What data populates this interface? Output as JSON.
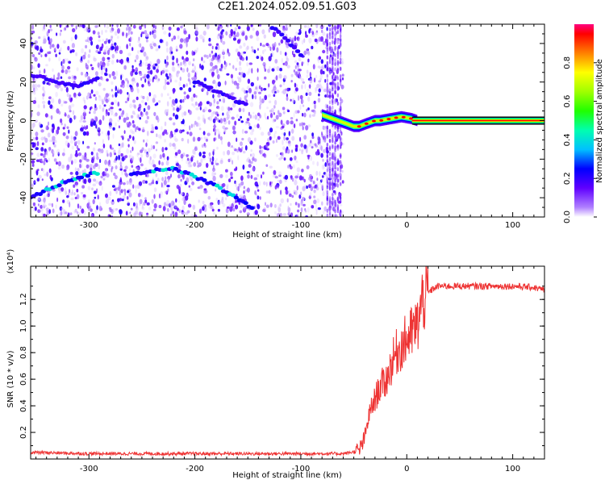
{
  "title": "C2E1.2024.052.09.51.G03",
  "colors": {
    "snr_line": "#ee3333",
    "background": "#ffffff",
    "axes": "#000000"
  },
  "chart_data": [
    {
      "type": "heatmap",
      "title": "C2E1.2024.052.09.51.G03",
      "xlabel": "Height of straight line (km)",
      "ylabel": "Frequency (Hz)",
      "xlim": [
        -355,
        130
      ],
      "ylim": [
        -50,
        50
      ],
      "x_ticks": [
        -300,
        -200,
        -100,
        0,
        100
      ],
      "y_ticks": [
        -40,
        -20,
        0,
        20,
        40
      ],
      "grid": false,
      "colormap": "rainbow",
      "colorbar": {
        "label": "Normalized spectral amplitude",
        "range": [
          0,
          1
        ],
        "ticks": [
          0.0,
          0.2,
          0.4,
          0.6,
          0.8
        ]
      },
      "noise_region_x": [
        -355,
        -60
      ],
      "main_tone": {
        "x": [
          -80,
          -75,
          -70,
          -65,
          -60,
          -55,
          -50,
          -45,
          -40,
          -35,
          -30,
          -25,
          -20,
          -15,
          -10,
          -5,
          0,
          5,
          10,
          130
        ],
        "y": [
          3,
          2,
          1,
          0,
          -1,
          -2,
          -3,
          -3,
          -2,
          -1,
          0,
          0,
          0.5,
          1,
          1.5,
          2,
          1.5,
          1,
          0,
          0
        ]
      },
      "alias_tracks": [
        {
          "x": [
            -355,
            -340,
            -320,
            -300,
            -290
          ],
          "y": [
            -40,
            -36,
            -31,
            -28,
            -27
          ]
        },
        {
          "x": [
            -355,
            -330,
            -310,
            -300,
            -290
          ],
          "y": [
            24,
            20,
            18,
            20,
            22
          ]
        },
        {
          "x": [
            -260,
            -240,
            -220,
            -200,
            -180,
            -160,
            -145
          ],
          "y": [
            -28,
            -26,
            -25,
            -29,
            -34,
            -40,
            -46
          ]
        },
        {
          "x": [
            -200,
            -190,
            -175,
            -160,
            -150
          ],
          "y": [
            20,
            18,
            14,
            10,
            8
          ]
        },
        {
          "x": [
            -130,
            -120,
            -110,
            -100
          ],
          "y": [
            50,
            45,
            40,
            34
          ]
        }
      ]
    },
    {
      "type": "line",
      "xlabel": "Height of straight line (km)",
      "ylabel": "SNR (10 * v/v)",
      "y_multiplier": "(x10⁴)",
      "xlim": [
        -355,
        130
      ],
      "ylim": [
        0,
        1.45
      ],
      "x_ticks": [
        -300,
        -200,
        -100,
        0,
        100
      ],
      "y_ticks": [
        0.2,
        0.4,
        0.6,
        0.8,
        1.0,
        1.2
      ],
      "grid": false,
      "series": [
        {
          "x": [
            -355,
            -300,
            -250,
            -200,
            -150,
            -100,
            -60,
            -45,
            -40,
            -35,
            -30,
            -25,
            -20,
            -15,
            -10,
            -5,
            0,
            5,
            10,
            15,
            20,
            25,
            30,
            40,
            60,
            80,
            100,
            120,
            130
          ],
          "y": [
            0.05,
            0.04,
            0.04,
            0.04,
            0.04,
            0.04,
            0.04,
            0.06,
            0.15,
            0.35,
            0.45,
            0.55,
            0.58,
            0.7,
            0.8,
            0.85,
            0.9,
            0.95,
            1.0,
            1.2,
            1.25,
            1.28,
            1.3,
            1.3,
            1.3,
            1.3,
            1.3,
            1.29,
            1.27
          ]
        }
      ]
    }
  ]
}
